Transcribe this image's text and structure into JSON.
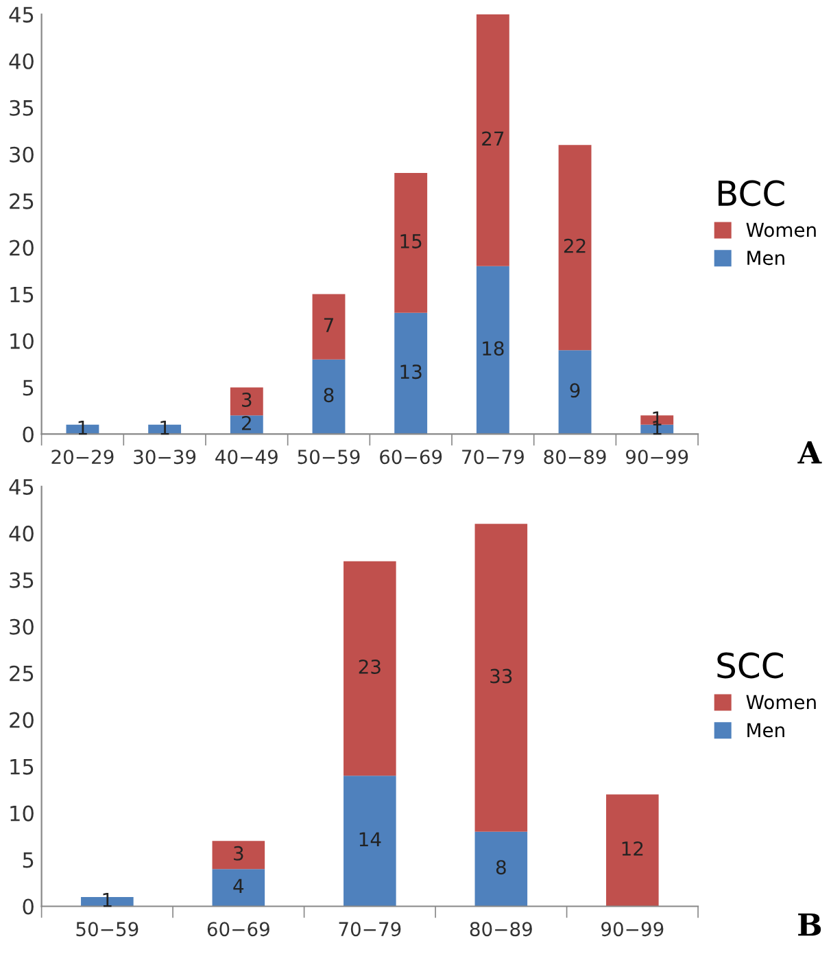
{
  "chart_data": [
    {
      "type": "bar",
      "stacked": true,
      "legend_title": "BCC",
      "legend": "right",
      "grid": false,
      "annotations": [
        "A"
      ],
      "categories": [
        "20−29",
        "30−39",
        "40−49",
        "50−59",
        "60−69",
        "70−79",
        "80−89",
        "90−99"
      ],
      "ylim": [
        0,
        45
      ],
      "yticks": [
        0,
        5,
        10,
        15,
        20,
        25,
        30,
        35,
        40,
        45
      ],
      "series": [
        {
          "name": "Men",
          "color": "#4f81bd",
          "values": [
            1,
            1,
            2,
            8,
            13,
            18,
            9,
            1
          ],
          "value_labels": [
            "1",
            "1",
            "2",
            "8",
            "13",
            "18",
            "9",
            "1"
          ]
        },
        {
          "name": "Women",
          "color": "#c0504d",
          "values": [
            0,
            0,
            3,
            7,
            15,
            27,
            22,
            1
          ],
          "value_labels": [
            null,
            null,
            "3",
            "7",
            "15",
            "27",
            "22",
            "1"
          ]
        }
      ]
    },
    {
      "type": "bar",
      "stacked": true,
      "legend_title": "SCC",
      "legend": "right",
      "grid": false,
      "annotations": [
        "B"
      ],
      "categories": [
        "50−59",
        "60−69",
        "70−79",
        "80−89",
        "90−99"
      ],
      "ylim": [
        0,
        45
      ],
      "yticks": [
        0,
        5,
        10,
        15,
        20,
        25,
        30,
        35,
        40,
        45
      ],
      "series": [
        {
          "name": "Men",
          "color": "#4f81bd",
          "values": [
            1,
            4,
            14,
            8,
            0
          ],
          "value_labels": [
            "1",
            "4",
            "14",
            "8",
            null
          ]
        },
        {
          "name": "Women",
          "color": "#c0504d",
          "values": [
            0,
            3,
            23,
            33,
            12
          ],
          "value_labels": [
            null,
            "3",
            "23",
            "33",
            "12"
          ]
        }
      ]
    }
  ]
}
